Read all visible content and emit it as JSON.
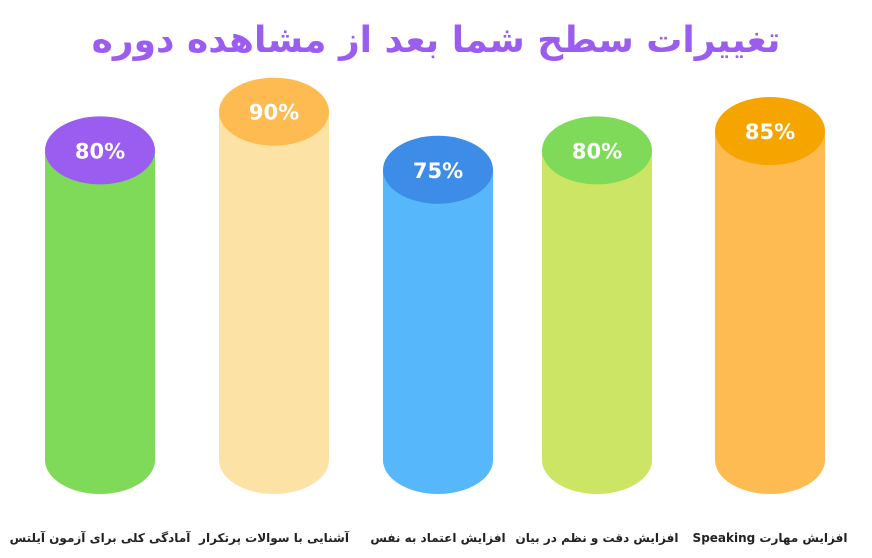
{
  "title": "تغییرات سطح شما بعد از مشاهده دوره",
  "colors": {
    "title": "#9b5cf0",
    "label": "#222222"
  },
  "chart_data": {
    "type": "bar",
    "categories": [
      "آمادگی کلی برای آزمون آیلتس",
      "آشنایی با سوالات پرتکرار",
      "افزایش اعتماد به نفس",
      "افزایش دقت و نظم در بیان",
      "افزایش مهارت Speaking"
    ],
    "values": [
      80,
      90,
      75,
      80,
      85
    ],
    "value_labels": [
      "80%",
      "90%",
      "75%",
      "80%",
      "85%"
    ],
    "bar_colors": [
      "#7fda5a",
      "#fde2a6",
      "#56b7fb",
      "#cde564",
      "#fdbb52"
    ],
    "cap_colors": [
      "#9b5cf0",
      "#fdbb52",
      "#3c8ce8",
      "#7fda5a",
      "#f6a500"
    ],
    "ylim": [
      0,
      100
    ],
    "grid": false,
    "legend": "none"
  }
}
